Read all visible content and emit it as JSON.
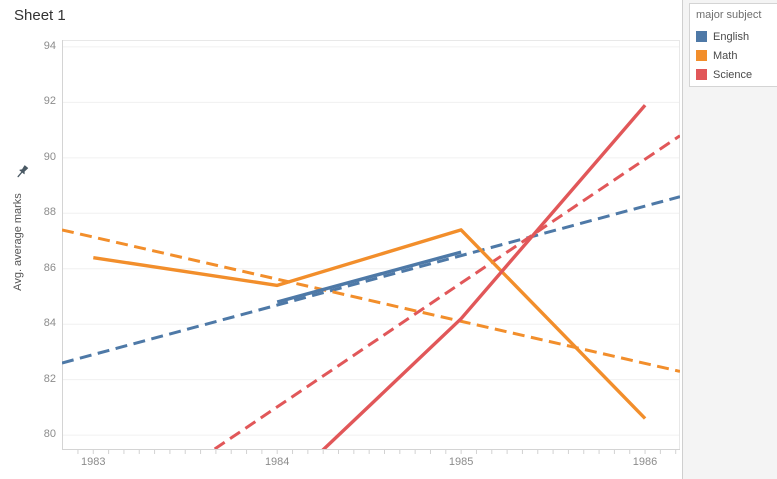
{
  "title": "Sheet 1",
  "y_axis": {
    "label": "Avg. average marks",
    "pin_icon": "pin-icon"
  },
  "x_axis": {
    "tick_labels": [
      "1983",
      "1984",
      "1985",
      "1986"
    ]
  },
  "legend": {
    "title": "major subject",
    "items": [
      {
        "label": "English",
        "color": "#4e79a7"
      },
      {
        "label": "Math",
        "color": "#f28e2b"
      },
      {
        "label": "Science",
        "color": "#e15759"
      }
    ]
  },
  "colors": {
    "english": "#4e79a7",
    "math": "#f28e2b",
    "science": "#e15759",
    "gridline": "#f0f0f0",
    "axis_line": "#d4d4d4",
    "tick_text": "#8c8c8c",
    "panel_bg": "#f4f4f4"
  },
  "chart_data": {
    "type": "line",
    "title": "Sheet 1",
    "xlabel": "",
    "ylabel": "Avg. average marks",
    "x_ticks": [
      1983,
      1984,
      1985,
      1986
    ],
    "y_ticks": [
      80,
      82,
      84,
      86,
      88,
      90,
      92,
      94
    ],
    "xlim": [
      1982.83,
      1986.19
    ],
    "ylim": [
      79.5,
      94.25
    ],
    "grid": "horizontal-only",
    "legend_position": "right-panel",
    "series": [
      {
        "name": "English trend",
        "role": "trend",
        "color": "#4e79a7",
        "style": "dashed",
        "points": [
          [
            1982.83,
            82.6
          ],
          [
            1986.19,
            88.6
          ]
        ]
      },
      {
        "name": "Math trend",
        "role": "trend",
        "color": "#f28e2b",
        "style": "dashed",
        "points": [
          [
            1982.83,
            87.4
          ],
          [
            1986.19,
            82.3
          ]
        ]
      },
      {
        "name": "Science trend",
        "role": "trend",
        "color": "#e15759",
        "style": "dashed",
        "points": [
          [
            1983.66,
            79.5
          ],
          [
            1986.19,
            90.8
          ]
        ]
      },
      {
        "name": "English",
        "role": "data",
        "color": "#4e79a7",
        "style": "solid",
        "points": [
          [
            1984,
            84.8
          ],
          [
            1985,
            86.6
          ]
        ]
      },
      {
        "name": "Math",
        "role": "data",
        "color": "#f28e2b",
        "style": "solid",
        "points": [
          [
            1983,
            86.4
          ],
          [
            1984,
            85.4
          ],
          [
            1985,
            87.4
          ],
          [
            1986,
            80.6
          ]
        ]
      },
      {
        "name": "Science",
        "role": "data",
        "color": "#e15759",
        "style": "solid",
        "points": [
          [
            1984,
            77.9
          ],
          [
            1985,
            84.2
          ],
          [
            1986,
            91.9
          ]
        ],
        "note": "1984 value extends below visible axis range"
      }
    ]
  }
}
